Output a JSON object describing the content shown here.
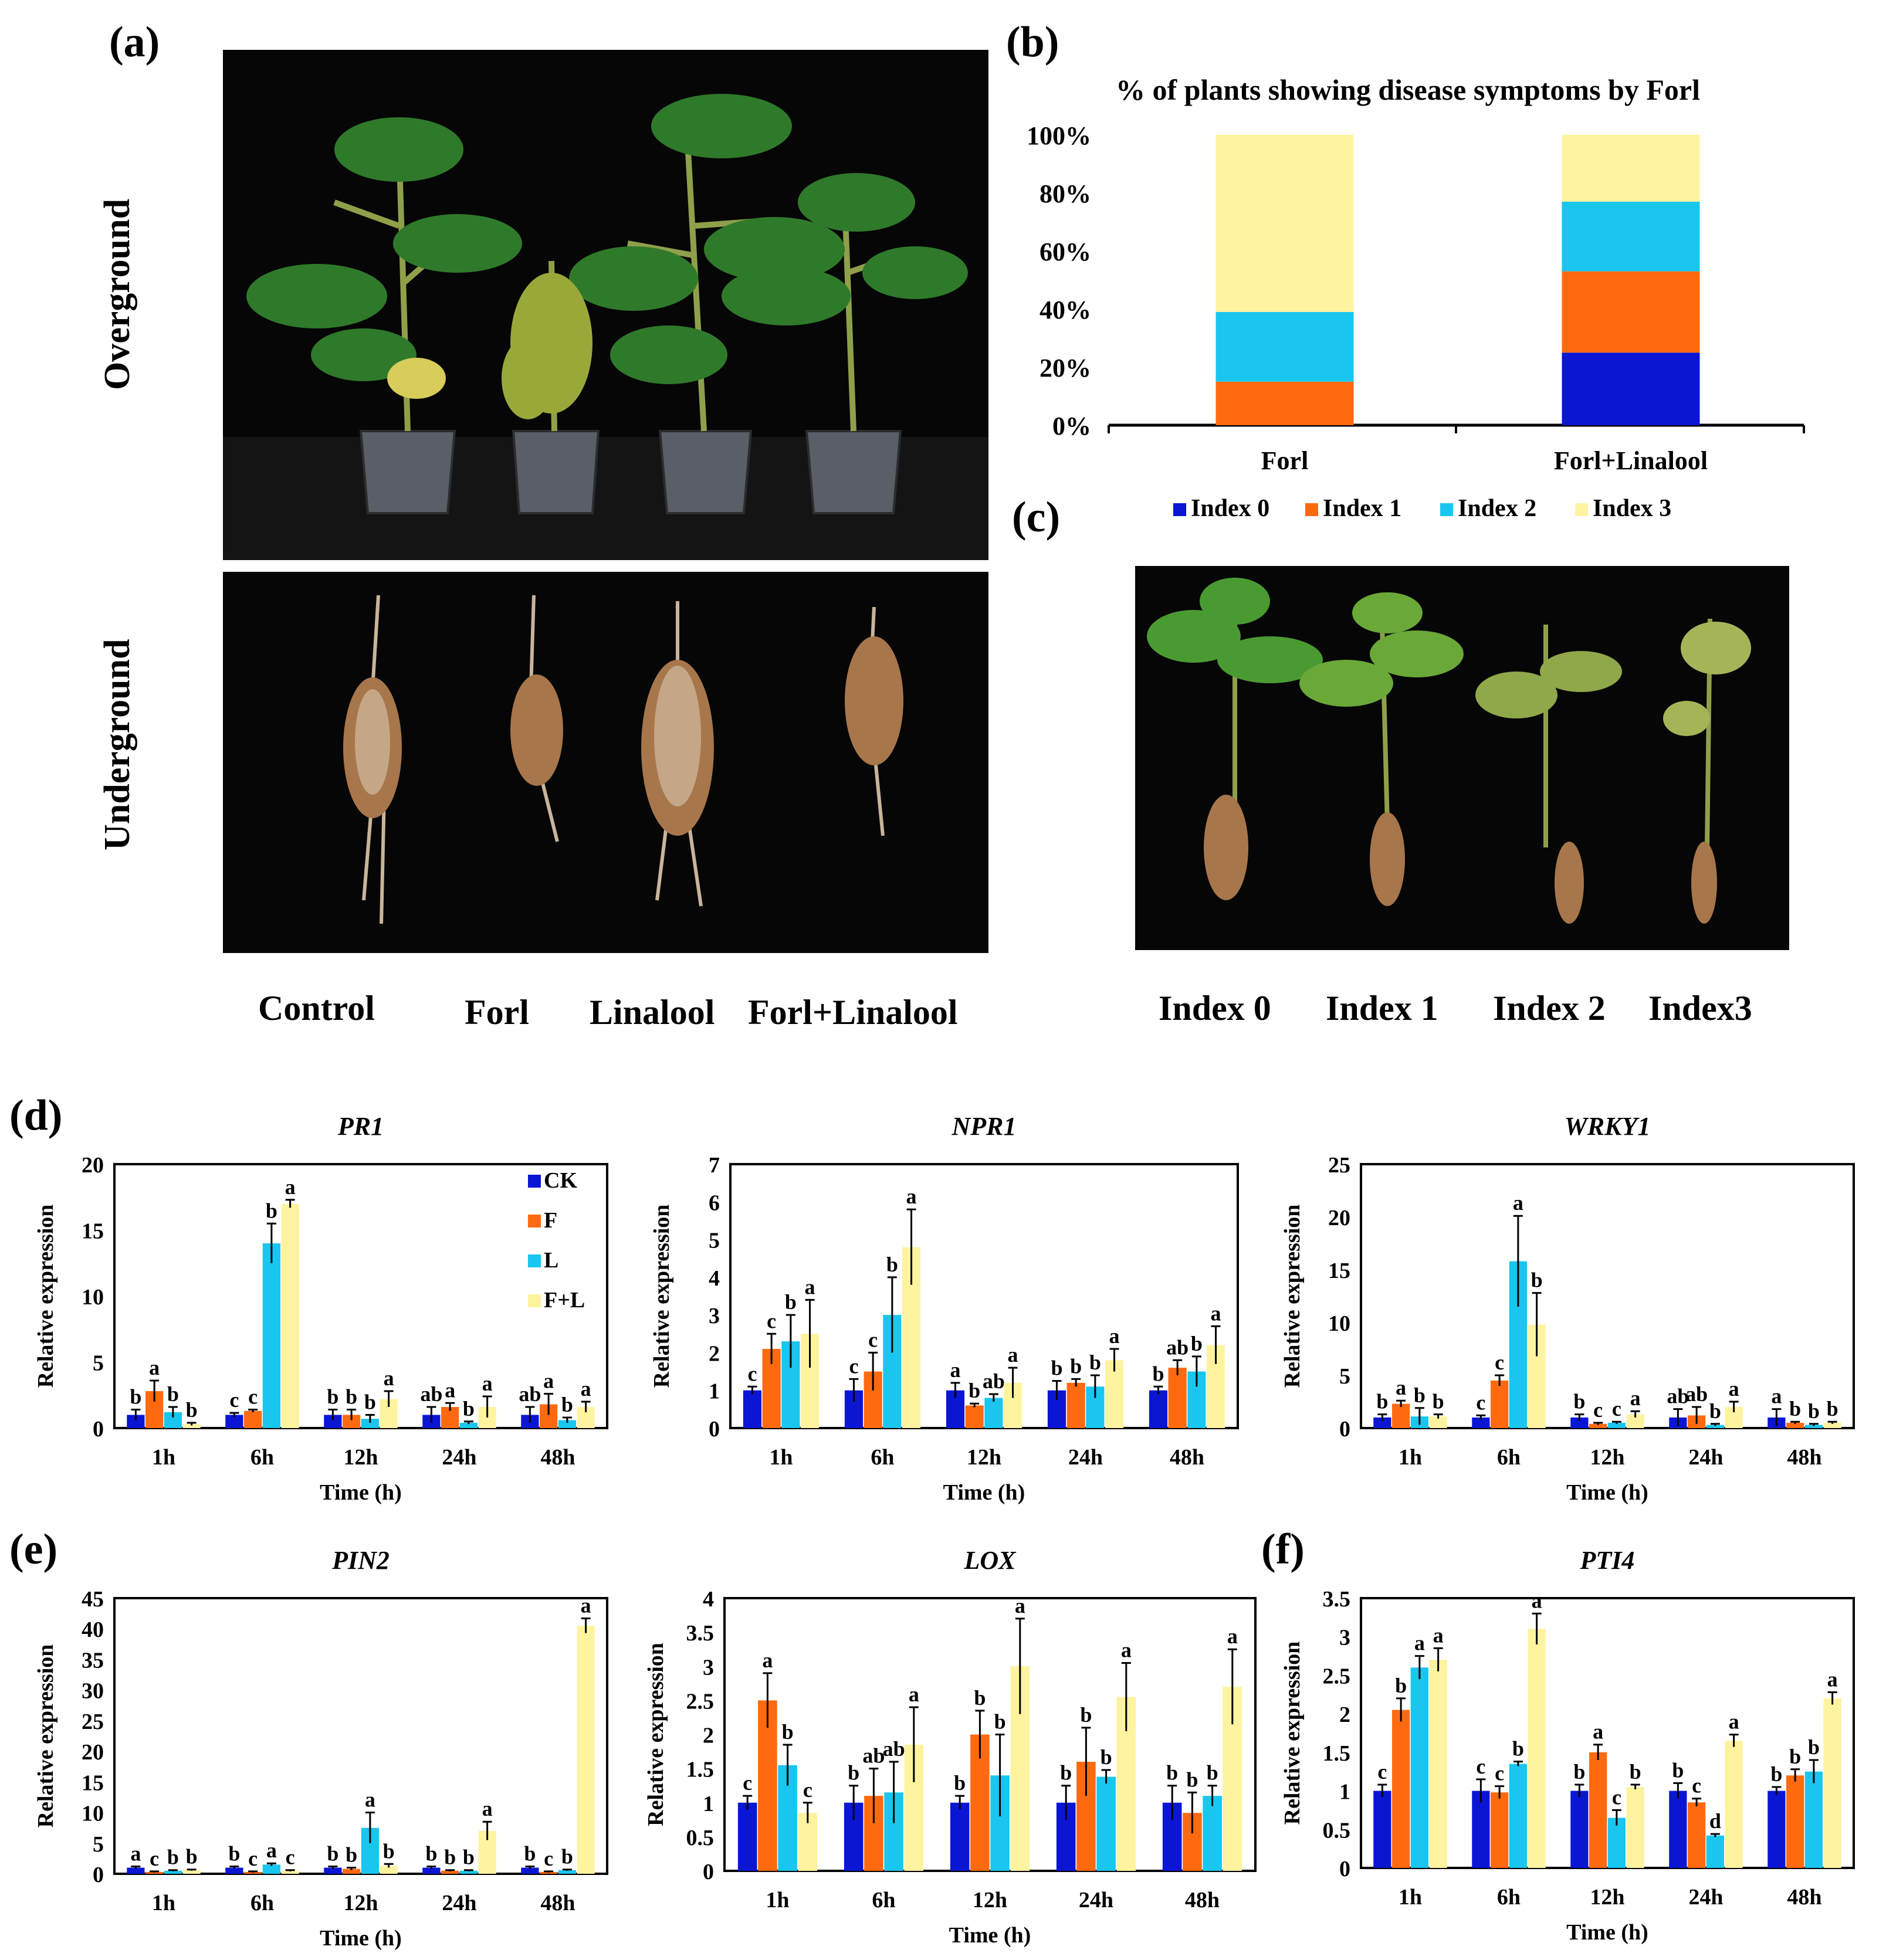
{
  "panels": {
    "a": "(a)",
    "b": "(b)",
    "c": "(c)",
    "d": "(d)",
    "e": "(e)",
    "f": "(f)"
  },
  "panel_a": {
    "row_labels": [
      "Overground",
      "Underground"
    ],
    "treatments": [
      "Control",
      "Forl",
      "Linalool",
      "Forl+Linalool"
    ]
  },
  "panel_c": {
    "labels": [
      "Index 0",
      "Index 1",
      "Index 2",
      "Index3"
    ]
  },
  "colors": {
    "ck": "#0a16d4",
    "f": "#ff6a10",
    "l": "#19c6ef",
    "fl": "#fff3a0"
  },
  "chart_data": [
    {
      "id": "b",
      "type": "bar",
      "stacked": true,
      "title": "% of plants showing disease symptoms by Forl",
      "categories": [
        "Forl",
        "Forl+Linalool"
      ],
      "yticks": [
        "0%",
        "20%",
        "40%",
        "60%",
        "80%",
        "100%"
      ],
      "ylim": [
        0,
        100
      ],
      "series": [
        {
          "name": "Index 0",
          "values": [
            0,
            25
          ]
        },
        {
          "name": "Index 1",
          "values": [
            15,
            28
          ]
        },
        {
          "name": "Index 2",
          "values": [
            24,
            24
          ]
        },
        {
          "name": "Index 3",
          "values": [
            61,
            23
          ]
        }
      ],
      "legend": [
        "Index 0",
        "Index 1",
        "Index 2",
        "Index 3"
      ]
    },
    {
      "id": "PR1",
      "type": "bar",
      "title": "PR1",
      "xlabel": "Time (h)",
      "ylabel": "Relative expression",
      "categories": [
        "1h",
        "6h",
        "12h",
        "24h",
        "48h"
      ],
      "ylim": [
        0,
        20
      ],
      "yticks": [
        "0",
        "5",
        "10",
        "15",
        "20"
      ],
      "legend": [
        "CK",
        "F",
        "L",
        "F+L"
      ],
      "series": [
        {
          "name": "CK",
          "values": [
            1.0,
            1.0,
            1.0,
            1.0,
            1.0
          ],
          "err": [
            0.4,
            0.15,
            0.4,
            0.6,
            0.6
          ],
          "letters": [
            "b",
            "c",
            "b",
            "ab",
            "ab"
          ]
        },
        {
          "name": "F",
          "values": [
            2.8,
            1.3,
            1.0,
            1.6,
            1.8
          ],
          "err": [
            0.8,
            0.1,
            0.4,
            0.3,
            0.8
          ],
          "letters": [
            "a",
            "c",
            "b",
            "a",
            "a"
          ]
        },
        {
          "name": "L",
          "values": [
            1.2,
            14.0,
            0.7,
            0.4,
            0.6
          ],
          "err": [
            0.4,
            1.5,
            0.3,
            0.1,
            0.2
          ],
          "letters": [
            "b",
            "b",
            "b",
            "b",
            "b"
          ]
        },
        {
          "name": "F+L",
          "values": [
            0.3,
            17.0,
            2.2,
            1.6,
            1.6
          ],
          "err": [
            0.1,
            0.3,
            0.6,
            0.8,
            0.4
          ],
          "letters": [
            "b",
            "a",
            "a",
            "a",
            "a"
          ]
        }
      ]
    },
    {
      "id": "NPR1",
      "type": "bar",
      "title": "NPR1",
      "xlabel": "Time (h)",
      "ylabel": "Relative expression",
      "categories": [
        "1h",
        "6h",
        "12h",
        "24h",
        "48h"
      ],
      "ylim": [
        0,
        7
      ],
      "yticks": [
        "0",
        "1",
        "2",
        "3",
        "4",
        "5",
        "6",
        "7"
      ],
      "series": [
        {
          "name": "CK",
          "values": [
            1.0,
            1.0,
            1.0,
            1.0,
            1.0
          ],
          "err": [
            0.1,
            0.3,
            0.2,
            0.25,
            0.1
          ],
          "letters": [
            "c",
            "c",
            "a",
            "b",
            "b"
          ]
        },
        {
          "name": "F",
          "values": [
            2.1,
            1.5,
            0.6,
            1.2,
            1.6
          ],
          "err": [
            0.4,
            0.5,
            0.05,
            0.1,
            0.2
          ],
          "letters": [
            "c",
            "c",
            "b",
            "b",
            "ab"
          ]
        },
        {
          "name": "L",
          "values": [
            2.3,
            3.0,
            0.8,
            1.1,
            1.5
          ],
          "err": [
            0.7,
            1.0,
            0.1,
            0.3,
            0.4
          ],
          "letters": [
            "b",
            "b",
            "ab",
            "b",
            "b"
          ]
        },
        {
          "name": "F+L",
          "values": [
            2.5,
            4.8,
            1.2,
            1.8,
            2.2
          ],
          "err": [
            0.9,
            1.0,
            0.4,
            0.3,
            0.5
          ],
          "letters": [
            "a",
            "a",
            "a",
            "a",
            "a"
          ]
        }
      ]
    },
    {
      "id": "WRKY1",
      "type": "bar",
      "title": "WRKY1",
      "xlabel": "Time (h)",
      "ylabel": "Relative expression",
      "categories": [
        "1h",
        "6h",
        "12h",
        "24h",
        "48h"
      ],
      "ylim": [
        0,
        25
      ],
      "yticks": [
        "0",
        "5",
        "10",
        "15",
        "20",
        "25"
      ],
      "series": [
        {
          "name": "CK",
          "values": [
            1.0,
            1.0,
            1.0,
            1.0,
            1.0
          ],
          "err": [
            0.3,
            0.2,
            0.3,
            0.8,
            0.8
          ],
          "letters": [
            "b",
            "c",
            "b",
            "ab",
            "a"
          ]
        },
        {
          "name": "F",
          "values": [
            2.3,
            4.5,
            0.4,
            1.2,
            0.5
          ],
          "err": [
            0.3,
            0.5,
            0.1,
            0.8,
            0.1
          ],
          "letters": [
            "a",
            "c",
            "c",
            "ab",
            "b"
          ]
        },
        {
          "name": "L",
          "values": [
            1.1,
            15.8,
            0.5,
            0.3,
            0.3
          ],
          "err": [
            0.8,
            4.3,
            0.1,
            0.1,
            0.1
          ],
          "letters": [
            "b",
            "a",
            "c",
            "b",
            "b"
          ]
        },
        {
          "name": "F+L",
          "values": [
            1.1,
            9.8,
            1.3,
            2.0,
            0.5
          ],
          "err": [
            0.2,
            3.0,
            0.3,
            0.5,
            0.1
          ],
          "letters": [
            "b",
            "b",
            "a",
            "a",
            "b"
          ]
        }
      ]
    },
    {
      "id": "PIN2",
      "type": "bar",
      "title": "PIN2",
      "xlabel": "Time (h)",
      "ylabel": "Relative expression",
      "categories": [
        "1h",
        "6h",
        "12h",
        "24h",
        "48h"
      ],
      "ylim": [
        0,
        45
      ],
      "yticks": [
        "0",
        "5",
        "10",
        "15",
        "20",
        "25",
        "30",
        "35",
        "40",
        "45"
      ],
      "series": [
        {
          "name": "CK",
          "values": [
            1.0,
            1.0,
            1.0,
            1.0,
            1.0
          ],
          "err": [
            0.2,
            0.2,
            0.2,
            0.2,
            0.2
          ],
          "letters": [
            "a",
            "b",
            "b",
            "b",
            "b"
          ]
        },
        {
          "name": "F",
          "values": [
            0.3,
            0.3,
            0.8,
            0.5,
            0.3
          ],
          "err": [
            0.1,
            0.1,
            0.2,
            0.1,
            0.1
          ],
          "letters": [
            "c",
            "c",
            "b",
            "b",
            "c"
          ]
        },
        {
          "name": "L",
          "values": [
            0.5,
            1.5,
            7.5,
            0.5,
            0.6
          ],
          "err": [
            0.1,
            0.2,
            2.5,
            0.1,
            0.1
          ],
          "letters": [
            "b",
            "a",
            "a",
            "b",
            "b"
          ]
        },
        {
          "name": "F+L",
          "values": [
            0.6,
            0.5,
            1.3,
            7.0,
            40.5
          ],
          "err": [
            0.1,
            0.1,
            0.3,
            1.5,
            1.2
          ],
          "letters": [
            "b",
            "c",
            "b",
            "a",
            "a"
          ]
        }
      ]
    },
    {
      "id": "LOX",
      "type": "bar",
      "title": "LOX",
      "xlabel": "Time (h)",
      "ylabel": "Relative expression",
      "categories": [
        "1h",
        "6h",
        "12h",
        "24h",
        "48h"
      ],
      "ylim": [
        0,
        4
      ],
      "yticks": [
        "0",
        "0.5",
        "1",
        "1.5",
        "2",
        "2.5",
        "3",
        "3.5",
        "4"
      ],
      "series": [
        {
          "name": "CK",
          "values": [
            1.0,
            1.0,
            1.0,
            1.0,
            1.0
          ],
          "err": [
            0.1,
            0.25,
            0.1,
            0.25,
            0.25
          ],
          "letters": [
            "c",
            "b",
            "b",
            "b",
            "b"
          ]
        },
        {
          "name": "F",
          "values": [
            2.5,
            1.1,
            2.0,
            1.6,
            0.85
          ],
          "err": [
            0.4,
            0.4,
            0.35,
            0.5,
            0.3
          ],
          "letters": [
            "a",
            "ab",
            "b",
            "b",
            "b"
          ]
        },
        {
          "name": "L",
          "values": [
            1.55,
            1.15,
            1.4,
            1.38,
            1.1
          ],
          "err": [
            0.3,
            0.45,
            0.6,
            0.1,
            0.15
          ],
          "letters": [
            "b",
            "ab",
            "b",
            "b",
            "b"
          ]
        },
        {
          "name": "F+L",
          "values": [
            0.85,
            1.85,
            3.0,
            2.55,
            2.7
          ],
          "err": [
            0.15,
            0.55,
            0.7,
            0.5,
            0.55
          ],
          "letters": [
            "c",
            "a",
            "a",
            "a",
            "a"
          ]
        }
      ]
    },
    {
      "id": "PTI4",
      "type": "bar",
      "title": "PTI4",
      "xlabel": "Time (h)",
      "ylabel": "Relative expression",
      "categories": [
        "1h",
        "6h",
        "12h",
        "24h",
        "48h"
      ],
      "ylim": [
        0,
        3.5
      ],
      "yticks": [
        "0",
        "0.5",
        "1",
        "1.5",
        "2",
        "2.5",
        "3",
        "3.5"
      ],
      "series": [
        {
          "name": "CK",
          "values": [
            1.0,
            1.0,
            1.0,
            1.0,
            1.0
          ],
          "err": [
            0.08,
            0.15,
            0.08,
            0.1,
            0.05
          ],
          "letters": [
            "c",
            "c",
            "b",
            "b",
            "b"
          ]
        },
        {
          "name": "F",
          "values": [
            2.05,
            0.98,
            1.5,
            0.85,
            1.2
          ],
          "err": [
            0.15,
            0.08,
            0.1,
            0.05,
            0.08
          ],
          "letters": [
            "b",
            "c",
            "a",
            "c",
            "b"
          ]
        },
        {
          "name": "L",
          "values": [
            2.6,
            1.35,
            0.65,
            0.42,
            1.25
          ],
          "err": [
            0.15,
            0.03,
            0.1,
            0.02,
            0.15
          ],
          "letters": [
            "a",
            "b",
            "c",
            "d",
            "b"
          ]
        },
        {
          "name": "F+L",
          "values": [
            2.7,
            3.1,
            1.05,
            1.65,
            2.2
          ],
          "err": [
            0.15,
            0.2,
            0.03,
            0.08,
            0.08
          ],
          "letters": [
            "a",
            "a",
            "b",
            "a",
            "a"
          ]
        }
      ]
    }
  ]
}
